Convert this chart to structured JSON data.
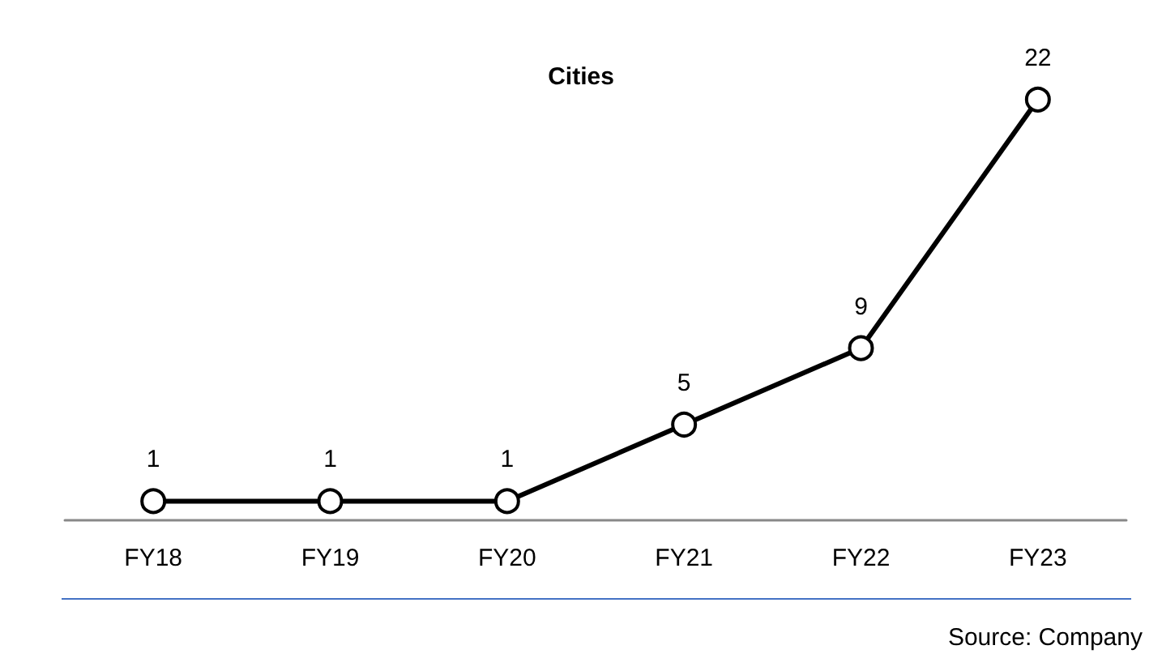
{
  "chart_data": {
    "type": "line",
    "title": "Cities",
    "categories": [
      "FY18",
      "FY19",
      "FY20",
      "FY21",
      "FY22",
      "FY23"
    ],
    "series": [
      {
        "color": "#000000",
        "values": [
          1,
          1,
          1,
          5,
          9,
          22
        ]
      }
    ],
    "data_labels": true,
    "marker": "circle",
    "line_style": "solid",
    "tick_labels": "x",
    "annotations": [
      "Source: Company"
    ]
  }
}
